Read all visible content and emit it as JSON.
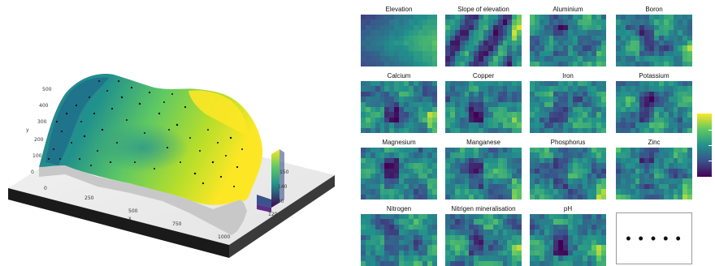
{
  "terrain_plot": {
    "x_axis_label": "x",
    "y_axis_label": "y",
    "x_ticks": [
      "0",
      "250",
      "500",
      "750",
      "1000"
    ],
    "y_ticks": [
      "0",
      "100",
      "200",
      "300",
      "400",
      "500"
    ],
    "colorbar_ticks": [
      "150",
      "140",
      "130",
      "120"
    ]
  },
  "panels": [
    {
      "title": "Elevation",
      "pattern": "elevation"
    },
    {
      "title": "Slope of elevation",
      "pattern": "slope"
    },
    {
      "title": "Aluminium",
      "pattern": "mix"
    },
    {
      "title": "Boron",
      "pattern": "mix"
    },
    {
      "title": "Calcium",
      "pattern": "mix"
    },
    {
      "title": "Copper",
      "pattern": "mix"
    },
    {
      "title": "Iron",
      "pattern": "mix"
    },
    {
      "title": "Potassium",
      "pattern": "mix"
    },
    {
      "title": "Magnesium",
      "pattern": "mix"
    },
    {
      "title": "Manganese",
      "pattern": "mix"
    },
    {
      "title": "Phosphorus",
      "pattern": "mix"
    },
    {
      "title": "Zinc",
      "pattern": "mix"
    },
    {
      "title": "Nitrogen",
      "pattern": "mix"
    },
    {
      "title": "Nitrigen mineralisation",
      "pattern": "mix"
    },
    {
      "title": "pH",
      "pattern": "mix"
    }
  ],
  "ellipsis_panel": {
    "text": "• • • • •"
  },
  "colormap": [
    "#440154",
    "#3b528b",
    "#21918c",
    "#5ec962",
    "#fde725"
  ]
}
